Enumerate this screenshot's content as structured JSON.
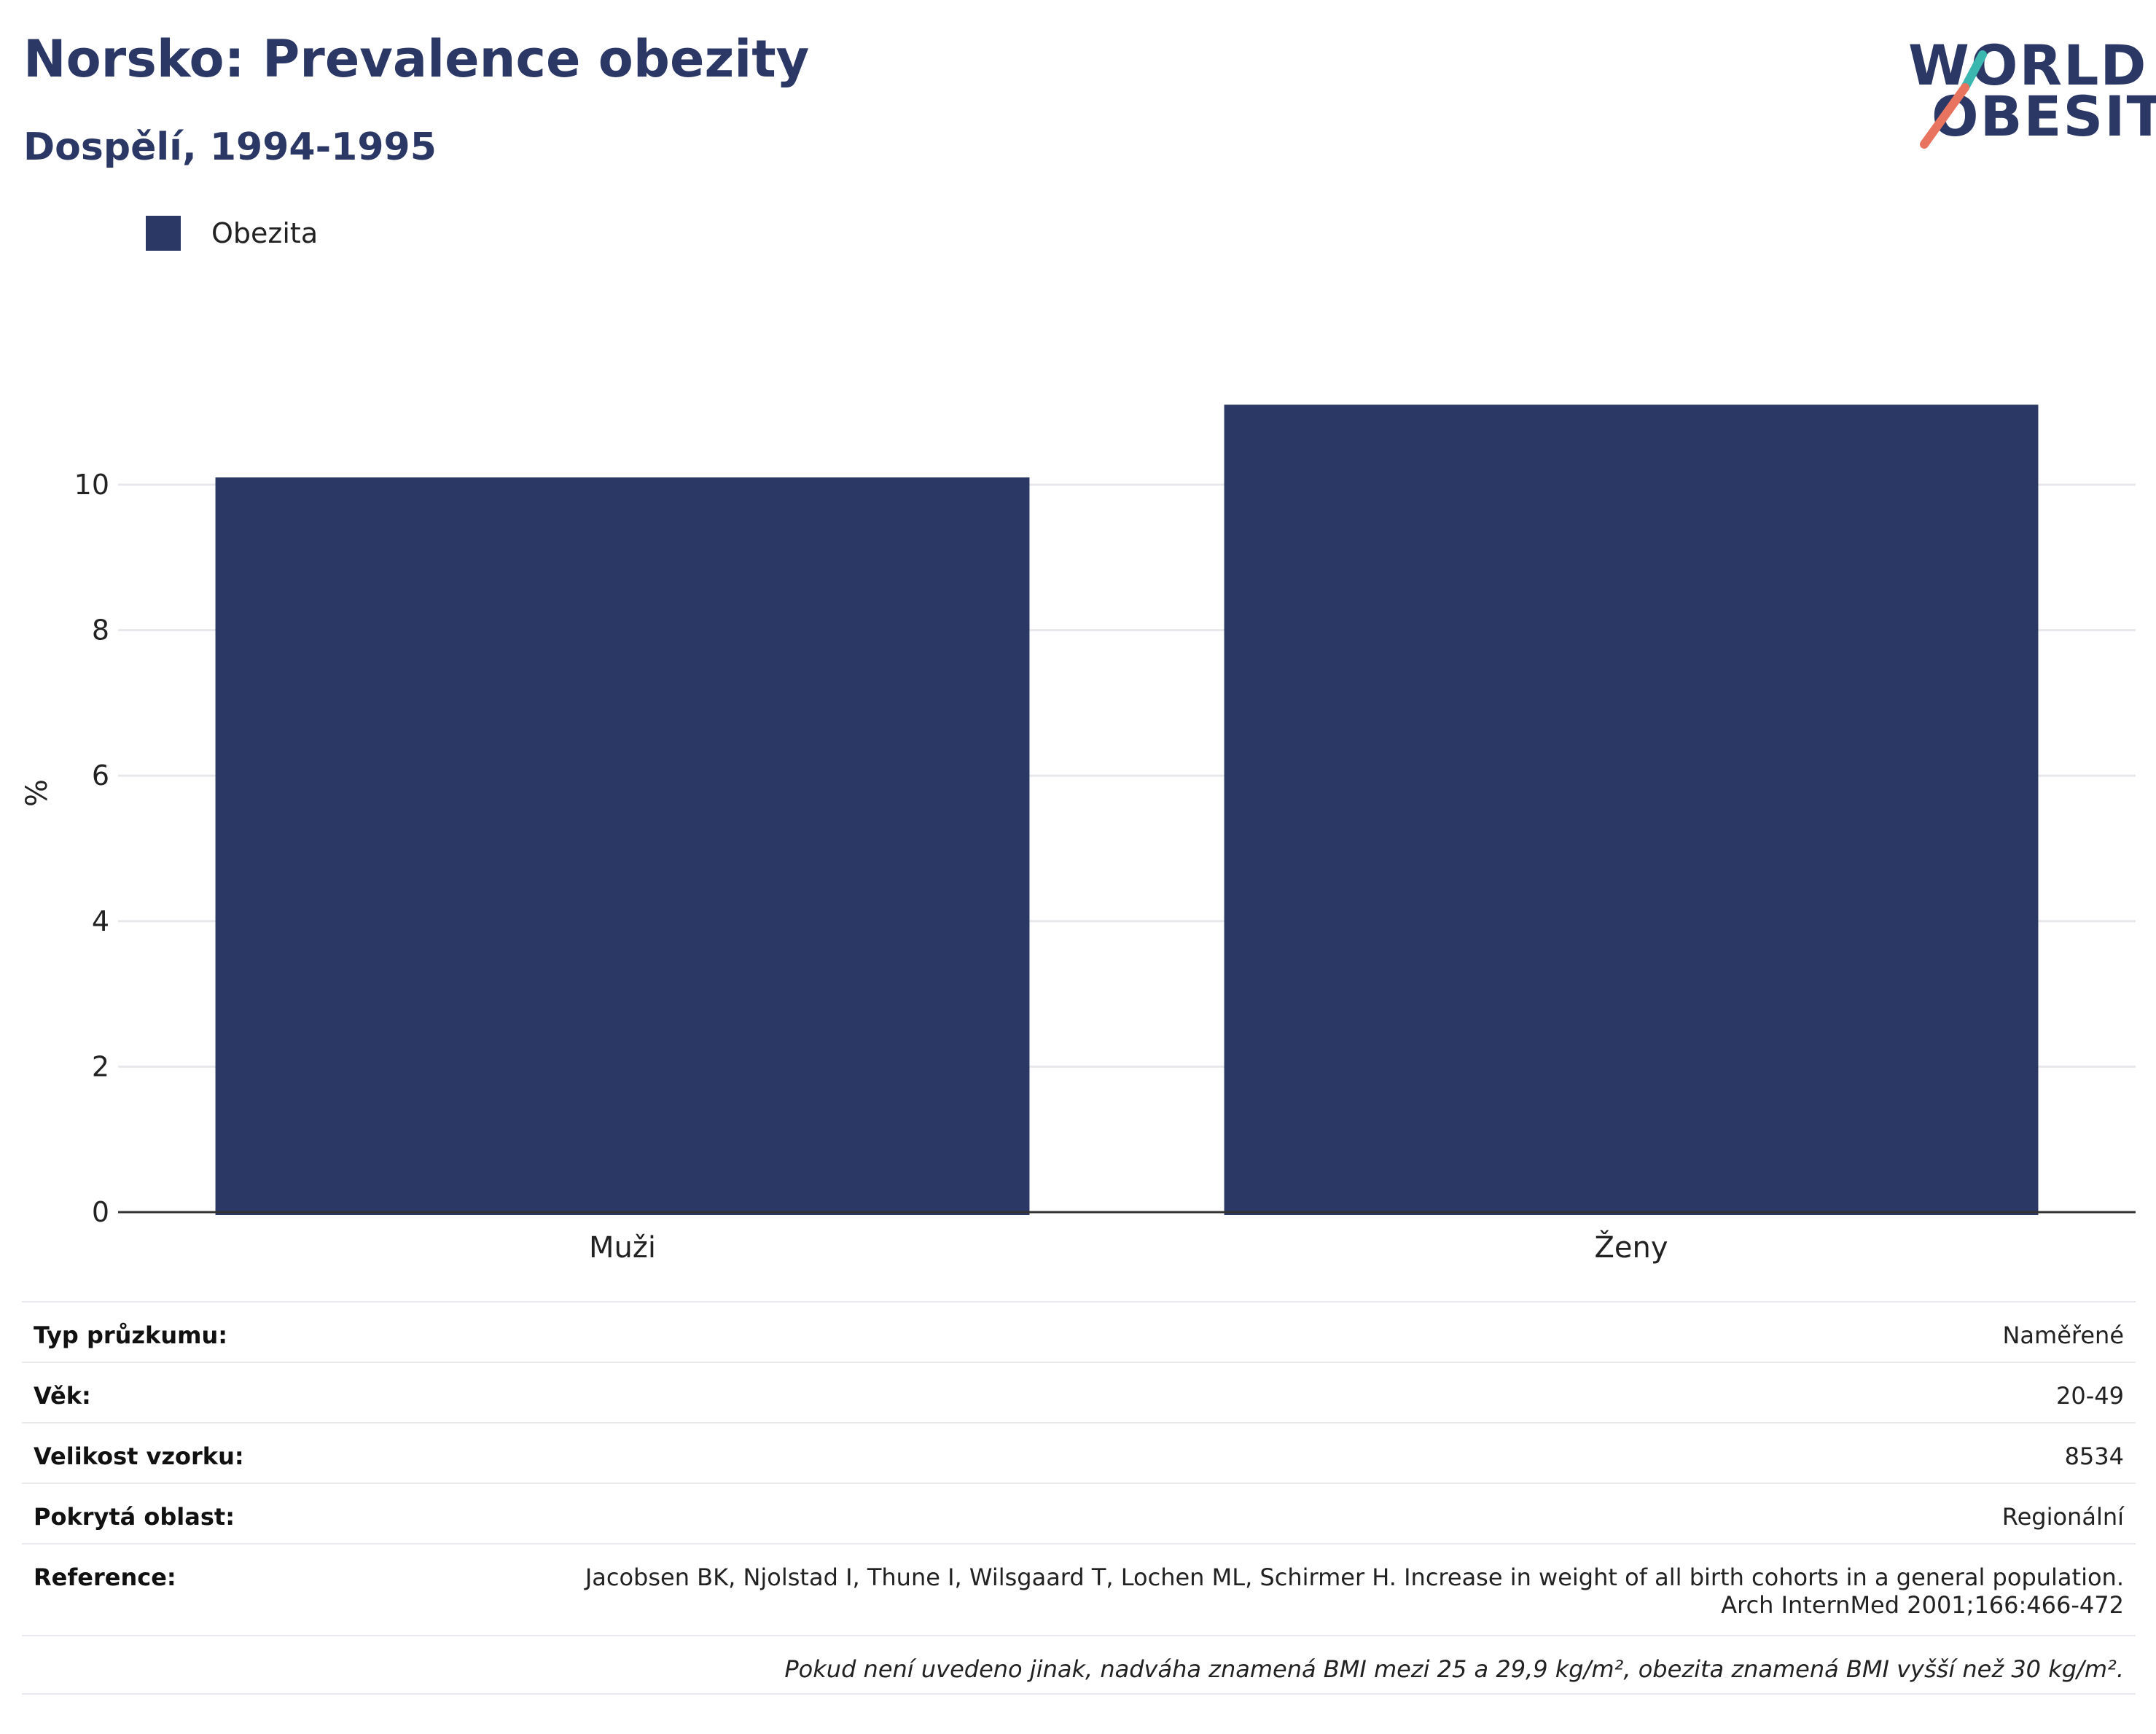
{
  "header": {
    "title": "Norsko: Prevalence obezity",
    "subtitle": "Dospělí, 1994-1995"
  },
  "logo": {
    "line1": "WORLD",
    "line2": "OBESITY",
    "accent_teal": "#3bb7b0",
    "accent_coral": "#e8735f"
  },
  "colors": {
    "bar": "#2b3764",
    "grid": "#e6e8ec",
    "axis": "#333333"
  },
  "chart_data": {
    "type": "bar",
    "categories": [
      "Muži",
      "Ženy"
    ],
    "series": [
      {
        "name": "Obezita",
        "values": [
          10.1,
          11.1
        ]
      }
    ],
    "ylabel": "%",
    "ylim": [
      0,
      12
    ],
    "yticks": [
      0,
      2,
      4,
      6,
      8,
      10
    ],
    "grid": true,
    "legend_position": "top-left"
  },
  "info": {
    "survey_type_label": "Typ průzkumu:",
    "survey_type_value": "Naměřené",
    "age_label": "Věk:",
    "age_value": "20-49",
    "sample_label": "Velikost vzorku:",
    "sample_value": "8534",
    "area_label": "Pokrytá oblast:",
    "area_value": "Regionální",
    "reference_label": "Reference:",
    "reference_line1": "Jacobsen BK, Njolstad I, Thune I, Wilsgaard T, Lochen ML, Schirmer H. Increase in weight of all birth cohorts in a general population.",
    "reference_line2": "Arch InternMed 2001;166:466-472",
    "note": "Pokud není uvedeno jinak, nadváha znamená BMI mezi 25 a 29,9 kg/m², obezita znamená BMI vyšší než 30 kg/m²."
  }
}
